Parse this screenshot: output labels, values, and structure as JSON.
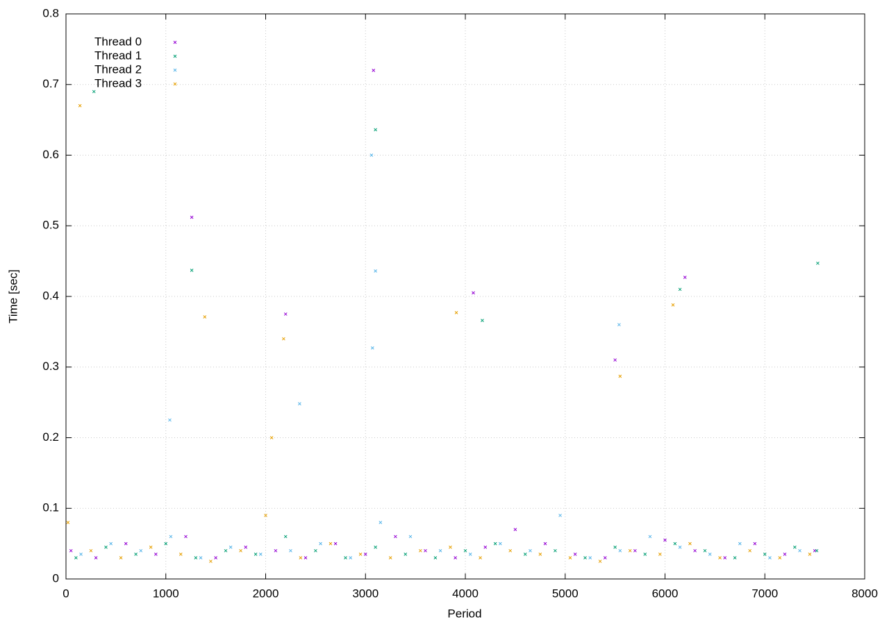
{
  "chart_data": {
    "type": "scatter",
    "x_label": "Period",
    "y_label": "Time [sec]",
    "xlim": [
      0,
      8000
    ],
    "ylim": [
      0,
      0.8
    ],
    "xticks": [
      0,
      1000,
      2000,
      3000,
      4000,
      5000,
      6000,
      7000,
      8000
    ],
    "yticks": [
      0,
      0.1,
      0.2,
      0.3,
      0.4,
      0.5,
      0.6,
      0.7,
      0.8
    ],
    "grid": true,
    "legend": "top-left",
    "series": [
      {
        "name": "Thread 0",
        "color": "#9400d3",
        "x": [
          50,
          300,
          600,
          900,
          1200,
          1500,
          1800,
          2100,
          2400,
          2700,
          3000,
          3300,
          3600,
          3900,
          4200,
          4500,
          4800,
          5100,
          5400,
          5700,
          6000,
          6300,
          6600,
          6900,
          7200,
          7500,
          1260,
          3080,
          4080,
          6200,
          5500,
          2200
        ],
        "values": [
          0.04,
          0.03,
          0.05,
          0.035,
          0.06,
          0.03,
          0.045,
          0.04,
          0.03,
          0.05,
          0.035,
          0.06,
          0.04,
          0.03,
          0.045,
          0.07,
          0.05,
          0.035,
          0.03,
          0.04,
          0.055,
          0.04,
          0.03,
          0.05,
          0.035,
          0.04,
          0.512,
          0.72,
          0.405,
          0.427,
          0.31,
          0.375
        ]
      },
      {
        "name": "Thread 1",
        "color": "#009e73",
        "x": [
          100,
          400,
          700,
          1000,
          1300,
          1600,
          1900,
          2200,
          2500,
          2800,
          3100,
          3400,
          3700,
          4000,
          4300,
          4600,
          4900,
          5200,
          5500,
          5800,
          6100,
          6400,
          6700,
          7000,
          7300,
          7520,
          280,
          1260,
          3100,
          4170,
          6150,
          7530
        ],
        "values": [
          0.03,
          0.045,
          0.035,
          0.05,
          0.03,
          0.04,
          0.035,
          0.06,
          0.04,
          0.03,
          0.045,
          0.035,
          0.03,
          0.04,
          0.05,
          0.035,
          0.04,
          0.03,
          0.045,
          0.035,
          0.05,
          0.04,
          0.03,
          0.035,
          0.045,
          0.04,
          0.69,
          0.437,
          0.636,
          0.366,
          0.41,
          0.447
        ]
      },
      {
        "name": "Thread 2",
        "color": "#56b4e9",
        "x": [
          150,
          450,
          750,
          1050,
          1350,
          1650,
          1950,
          2250,
          2550,
          2850,
          3150,
          3450,
          3750,
          4050,
          4350,
          4650,
          4950,
          5250,
          5550,
          5850,
          6150,
          6450,
          6750,
          7050,
          7350,
          1040,
          3060,
          3100,
          5540,
          2340,
          3070
        ],
        "values": [
          0.035,
          0.05,
          0.04,
          0.06,
          0.03,
          0.045,
          0.035,
          0.04,
          0.05,
          0.03,
          0.08,
          0.06,
          0.04,
          0.035,
          0.05,
          0.04,
          0.09,
          0.03,
          0.04,
          0.06,
          0.045,
          0.035,
          0.05,
          0.03,
          0.04,
          0.225,
          0.6,
          0.436,
          0.36,
          0.248,
          0.327
        ]
      },
      {
        "name": "Thread 3",
        "color": "#e69f00",
        "x": [
          20,
          250,
          550,
          850,
          1150,
          1450,
          1750,
          2000,
          2350,
          2650,
          2950,
          3250,
          3550,
          3850,
          4150,
          4450,
          4750,
          5050,
          5350,
          5650,
          5950,
          6250,
          6550,
          6850,
          7150,
          7450,
          140,
          1390,
          3910,
          6080,
          2180,
          5550,
          2060
        ],
        "values": [
          0.08,
          0.04,
          0.03,
          0.045,
          0.035,
          0.025,
          0.04,
          0.09,
          0.03,
          0.05,
          0.035,
          0.03,
          0.04,
          0.045,
          0.03,
          0.04,
          0.035,
          0.03,
          0.025,
          0.04,
          0.035,
          0.05,
          0.03,
          0.04,
          0.03,
          0.035,
          0.67,
          0.371,
          0.377,
          0.388,
          0.34,
          0.287,
          0.2
        ]
      }
    ]
  }
}
